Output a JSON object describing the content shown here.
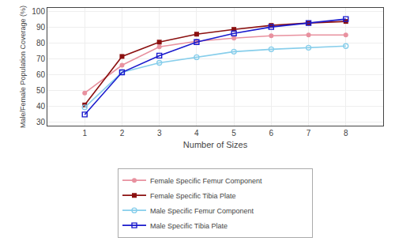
{
  "chart_data": {
    "type": "line",
    "x": [
      1,
      2,
      3,
      4,
      5,
      6,
      7,
      8
    ],
    "xlabel": "Number of Sizes",
    "ylabel": "Male/Female Population Coverage (%)",
    "xlim": [
      0,
      9
    ],
    "xticks": [
      1,
      2,
      3,
      4,
      5,
      6,
      7,
      8
    ],
    "ylim": [
      28,
      102
    ],
    "yticks": [
      30,
      40,
      50,
      60,
      70,
      80,
      90,
      100
    ],
    "grid": true,
    "legend": "bottom",
    "series": [
      {
        "name": "Female Specific Femur Component",
        "color": "#e8919f",
        "marker": "circle",
        "values": [
          48.5,
          66.0,
          77.5,
          81.0,
          83.0,
          84.5,
          85.0,
          85.0
        ]
      },
      {
        "name": "Female Specific Tibia Plate",
        "color": "#8b1010",
        "marker": "square",
        "values": [
          41.0,
          71.5,
          80.5,
          85.5,
          88.5,
          91.0,
          92.5,
          93.5
        ]
      },
      {
        "name": "Male Specific Femur Component",
        "color": "#87ceeb",
        "marker": "circle-open",
        "values": [
          39.5,
          61.5,
          67.5,
          71.0,
          74.5,
          76.0,
          77.0,
          78.0
        ]
      },
      {
        "name": "Male Specific Tibia Plate",
        "color": "#1a1acd",
        "marker": "square-open",
        "values": [
          35.0,
          61.5,
          72.0,
          80.5,
          86.0,
          90.0,
          92.5,
          95.0
        ]
      }
    ]
  }
}
